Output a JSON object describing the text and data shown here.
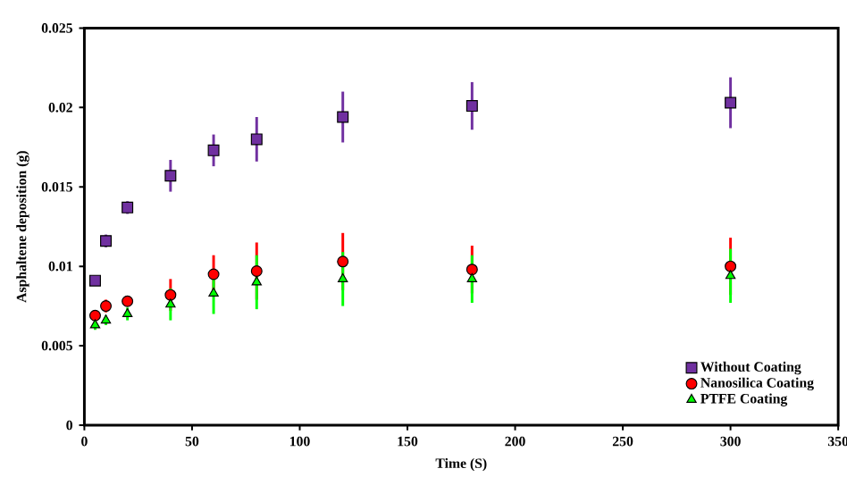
{
  "chart_data": {
    "type": "scatter",
    "xlabel": "Time (S)",
    "ylabel": "Asphaltene deposition (g)",
    "x": [
      5,
      10,
      20,
      40,
      60,
      80,
      120,
      180,
      300
    ],
    "xlim": [
      0,
      350
    ],
    "xticks": [
      0,
      50,
      100,
      150,
      200,
      250,
      300,
      350
    ],
    "ylim": [
      0,
      0.025
    ],
    "yticks": [
      0,
      0.005,
      0.01,
      0.015,
      0.02,
      0.025
    ],
    "legend": "bottom right",
    "grid": false,
    "series": [
      {
        "name": "Without Coating",
        "color": "#7030a0",
        "marker": "square",
        "values": [
          0.0091,
          0.0116,
          0.0137,
          0.0157,
          0.0173,
          0.018,
          0.0194,
          0.0201,
          0.0203
        ],
        "errors": [
          0.0002,
          0.0004,
          0.0004,
          0.001,
          0.001,
          0.0014,
          0.0016,
          0.0015,
          0.0016
        ]
      },
      {
        "name": "Nanosilica Coating",
        "color": "#ff0000",
        "marker": "circle",
        "values": [
          0.0069,
          0.0075,
          0.0078,
          0.0082,
          0.0095,
          0.0097,
          0.0103,
          0.0098,
          0.01
        ],
        "errors": [
          0.0003,
          0.0004,
          0.0003,
          0.001,
          0.0012,
          0.0018,
          0.0018,
          0.0015,
          0.0018
        ]
      },
      {
        "name": "PTFE Coating",
        "color": "#00ff00",
        "marker": "triangle",
        "values": [
          0.0063,
          0.0066,
          0.007,
          0.0076,
          0.0083,
          0.009,
          0.0092,
          0.0092,
          0.0094
        ],
        "errors": [
          0.0003,
          0.0003,
          0.0004,
          0.001,
          0.0013,
          0.0017,
          0.0017,
          0.0015,
          0.0017
        ]
      }
    ]
  }
}
